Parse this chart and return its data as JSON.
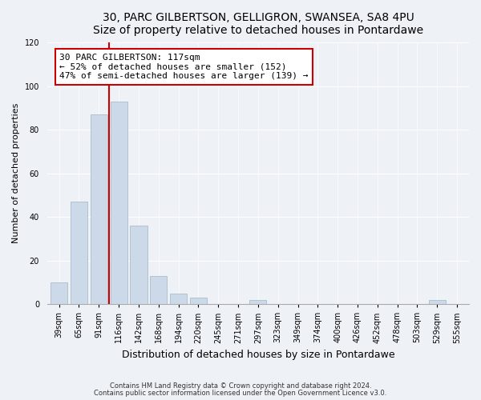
{
  "title": "30, PARC GILBERTSON, GELLIGRON, SWANSEA, SA8 4PU",
  "subtitle": "Size of property relative to detached houses in Pontardawe",
  "xlabel": "Distribution of detached houses by size in Pontardawe",
  "ylabel": "Number of detached properties",
  "bar_color": "#ccd9e8",
  "bar_edge_color": "#aabccc",
  "categories": [
    "39sqm",
    "65sqm",
    "91sqm",
    "116sqm",
    "142sqm",
    "168sqm",
    "194sqm",
    "220sqm",
    "245sqm",
    "271sqm",
    "297sqm",
    "323sqm",
    "349sqm",
    "374sqm",
    "400sqm",
    "426sqm",
    "452sqm",
    "478sqm",
    "503sqm",
    "529sqm",
    "555sqm"
  ],
  "values": [
    10,
    47,
    87,
    93,
    36,
    13,
    5,
    3,
    0,
    0,
    2,
    0,
    0,
    0,
    0,
    0,
    0,
    0,
    0,
    2,
    0
  ],
  "vline_color": "#cc0000",
  "annotation_text": "30 PARC GILBERTSON: 117sqm\n← 52% of detached houses are smaller (152)\n47% of semi-detached houses are larger (139) →",
  "annotation_box_color": "#ffffff",
  "annotation_box_edge": "#cc0000",
  "ylim": [
    0,
    120
  ],
  "yticks": [
    0,
    20,
    40,
    60,
    80,
    100,
    120
  ],
  "footer1": "Contains HM Land Registry data © Crown copyright and database right 2024.",
  "footer2": "Contains public sector information licensed under the Open Government Licence v3.0.",
  "bg_color": "#eef2f7",
  "grid_color": "#ffffff",
  "title_fontsize": 10,
  "subtitle_fontsize": 9,
  "xlabel_fontsize": 9,
  "ylabel_fontsize": 8,
  "tick_fontsize": 7,
  "annot_fontsize": 8
}
